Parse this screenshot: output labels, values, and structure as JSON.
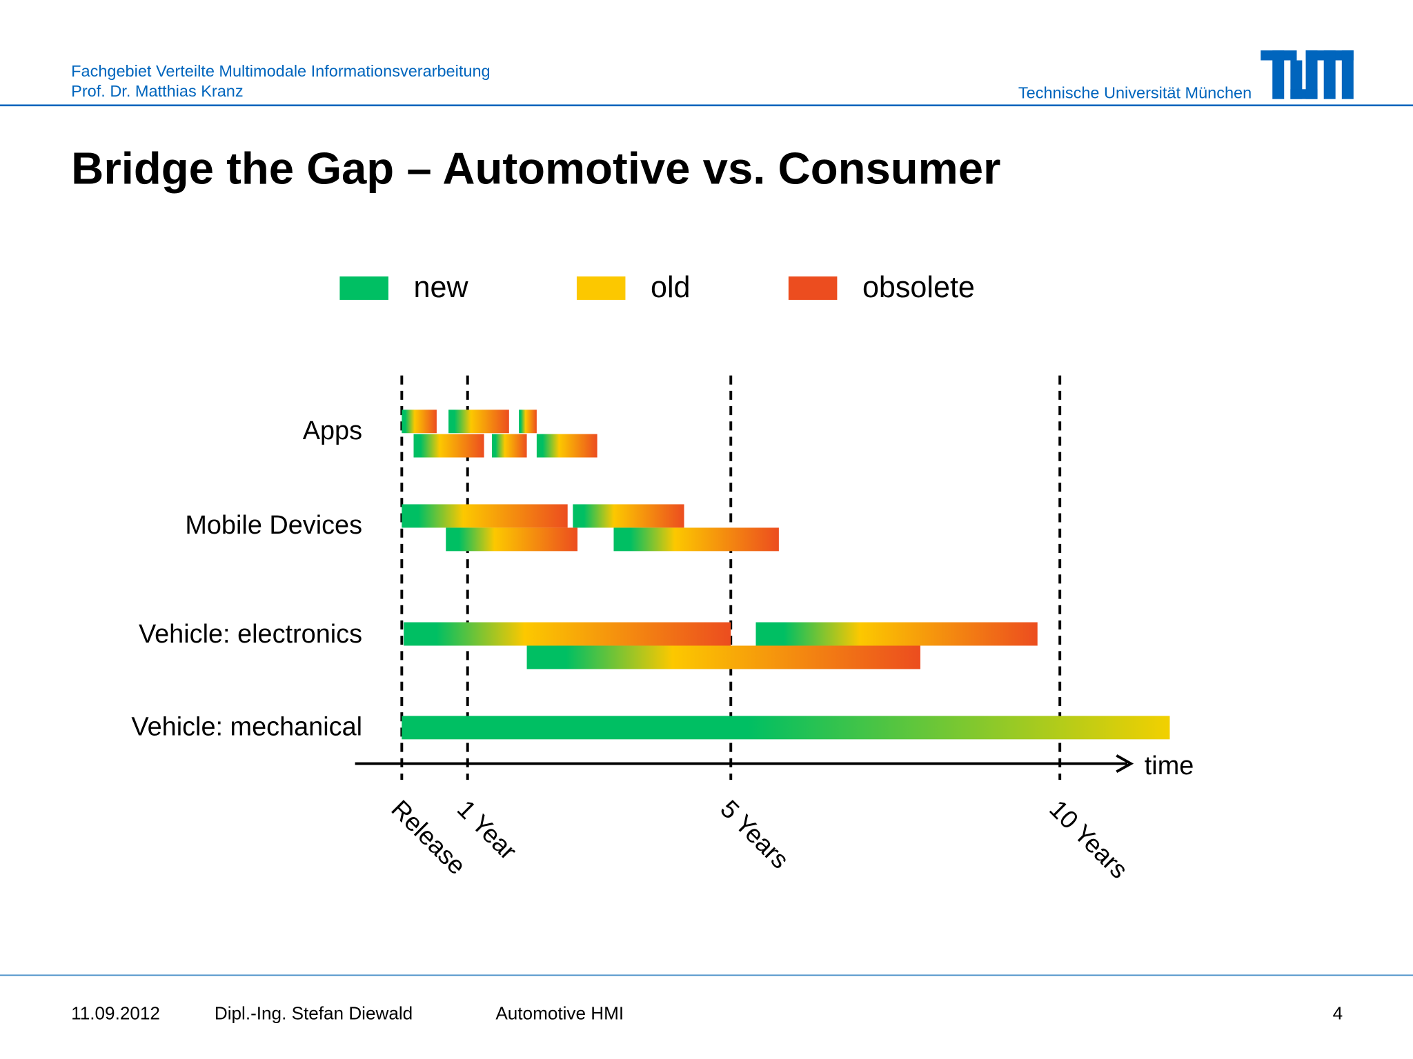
{
  "header": {
    "department": "Fachgebiet Verteilte Multimodale Informationsverarbeitung",
    "professor": "Prof. Dr. Matthias Kranz",
    "university": "Technische Universität München"
  },
  "title": "Bridge the Gap – Automotive vs. Consumer",
  "chart_data": {
    "type": "timeline",
    "legend": [
      {
        "name": "new",
        "color": "#00bf63"
      },
      {
        "name": "old",
        "color": "#fcc800"
      },
      {
        "name": "obsolete",
        "color": "#ec4d1f"
      }
    ],
    "rows": [
      {
        "label": "Apps",
        "lanes": [
          [
            [
              0,
              0.53
            ],
            [
              0.71,
              1.63
            ],
            [
              1.78,
              2.05
            ]
          ],
          [
            [
              0.18,
              1.25
            ],
            [
              1.37,
              1.9
            ],
            [
              2.05,
              2.97
            ]
          ]
        ]
      },
      {
        "label": "Mobile Devices",
        "lanes": [
          [
            [
              0,
              2.52
            ],
            [
              2.6,
              4.29
            ]
          ],
          [
            [
              0.67,
              2.67
            ],
            [
              3.22,
              5.73
            ]
          ]
        ]
      },
      {
        "label": "Vehicle: electronics",
        "lanes": [
          [
            [
              0.03,
              5
            ],
            [
              5.38,
              9.66
            ]
          ],
          [
            [
              1.9,
              7.88
            ]
          ]
        ]
      },
      {
        "label": "Vehicle: mechanical",
        "lanes": [
          [
            [
              0,
              11.67
            ]
          ]
        ],
        "colors": [
          "#00bf63",
          "#f2d000"
        ]
      }
    ],
    "xlabel": "time",
    "xlim": [
      -0.71,
      11.08
    ],
    "xticks": [
      {
        "value": 0,
        "label": "Release"
      },
      {
        "value": 1,
        "label": "1 Year"
      },
      {
        "value": 5,
        "label": "5 Years"
      },
      {
        "value": 10,
        "label": "10 Years"
      }
    ],
    "grid": true
  },
  "footer": {
    "date": "11.09.2012",
    "author": "Dipl.-Ing. Stefan Diewald",
    "topic": "Automotive HMI",
    "page": "4"
  }
}
